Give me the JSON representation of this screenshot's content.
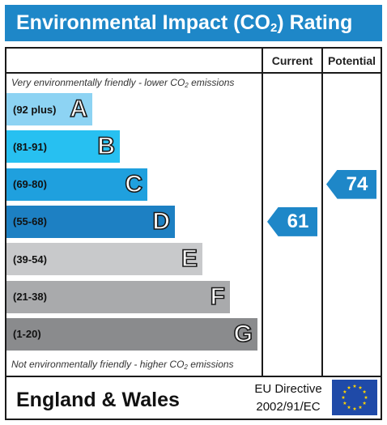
{
  "chart_data": {
    "type": "bar",
    "title": "Environmental Impact (CO2) Rating",
    "title_main": "Environmental Impact (CO",
    "title_sub": "2",
    "title_end": ") Rating",
    "columns": {
      "current": "Current",
      "potential": "Potential"
    },
    "top_note": {
      "pre": "Very environmentally friendly - lower CO",
      "sub": "2",
      "post": " emissions"
    },
    "bottom_note": {
      "pre": "Not environmentally friendly - higher CO",
      "sub": "2",
      "post": " emissions"
    },
    "bands": [
      {
        "letter": "A",
        "range": "(92 plus)",
        "color": "#8dd3f3"
      },
      {
        "letter": "B",
        "range": "(81-91)",
        "color": "#27c0f1"
      },
      {
        "letter": "C",
        "range": "(69-80)",
        "color": "#1fa0de"
      },
      {
        "letter": "D",
        "range": "(55-68)",
        "color": "#1d80c3"
      },
      {
        "letter": "E",
        "range": "(39-54)",
        "color": "#c8c9cb"
      },
      {
        "letter": "F",
        "range": "(21-38)",
        "color": "#a9aaac"
      },
      {
        "letter": "G",
        "range": "(1-20)",
        "color": "#8a8b8d"
      }
    ],
    "current": {
      "value": 61,
      "band": "D",
      "color": "#1e87c8"
    },
    "potential": {
      "value": 74,
      "band": "C",
      "color": "#1e87c8"
    }
  },
  "footer": {
    "region": "England & Wales",
    "directive_line1": "EU Directive",
    "directive_line2": "2002/91/EC",
    "flag_icon": "eu-flag-icon",
    "flag_color": "#1f4aa8",
    "star_color": "#ffd400"
  },
  "colors": {
    "title_bar": "#1e87c8",
    "border": "#1a1a1a"
  }
}
